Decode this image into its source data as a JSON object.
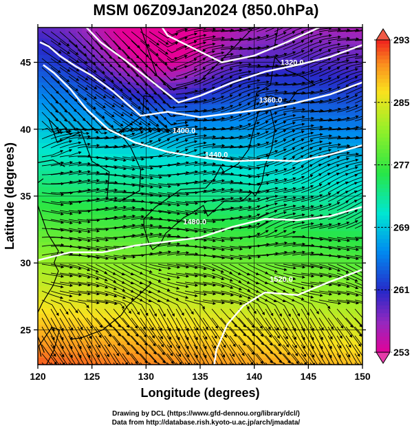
{
  "title": "MSM 06Z09Jan2024 (850.0hPa)",
  "axes": {
    "xlabel": "Longitude (degrees)",
    "ylabel": "Latitude  (degrees)",
    "x_range": [
      120,
      150
    ],
    "y_range": [
      22.4,
      47.6
    ],
    "x_ticks": [
      "120",
      "125",
      "130",
      "135",
      "140",
      "145",
      "150"
    ],
    "y_ticks": [
      "25",
      "30",
      "35",
      "40",
      "45"
    ]
  },
  "colorbar": {
    "labels": [
      "293",
      "285",
      "277",
      "269",
      "261",
      "253"
    ],
    "range": [
      253,
      293
    ]
  },
  "contours": {
    "labels": [
      "1320.0",
      "1360.0",
      "1400.0",
      "1440.0",
      "1480.0",
      "1520.0"
    ]
  },
  "footer": {
    "line1": "Drawing by DCL (https://www.gfd-dennou.org/library/dcl/)",
    "line2": "Data from http://database.rish.kyoto-u.ac.jp/arch/jmadata/"
  },
  "colors": {
    "contour": "#ffffff",
    "land_outline": "#000000",
    "streamline": "#000000"
  }
}
